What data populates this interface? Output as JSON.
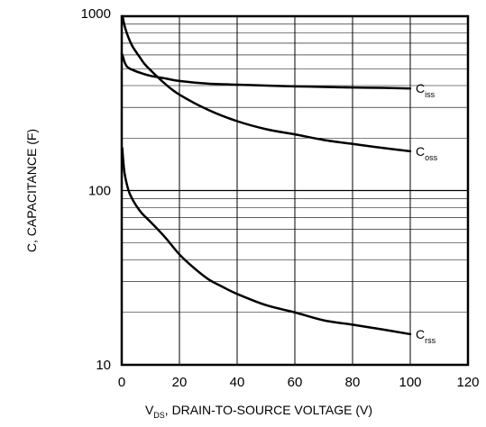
{
  "chart_data": {
    "type": "line",
    "title": "",
    "xlabel": {
      "prefix": "V",
      "sub": "DS",
      "suffix": ", DRAIN-TO-SOURCE VOLTAGE (V)"
    },
    "ylabel": "C, CAPACITANCE (F)",
    "xlim": [
      0,
      120
    ],
    "ylim": [
      10,
      1000
    ],
    "yscale": "log",
    "grid": true,
    "x_ticks": [
      0,
      20,
      40,
      60,
      80,
      100,
      120
    ],
    "x_tick_labels": [
      "0",
      "20",
      "40",
      "60",
      "80",
      "100",
      "120"
    ],
    "y_ticks": [
      10,
      100,
      1000
    ],
    "y_tick_labels": [
      "10",
      "100",
      "1000"
    ],
    "series": [
      {
        "name": "Ciss",
        "label_main": "C",
        "label_sub": "iss",
        "color": "#000000",
        "x": [
          0,
          0.5,
          1,
          2,
          4,
          7,
          10,
          15,
          20,
          30,
          40,
          50,
          60,
          70,
          80,
          90,
          100
        ],
        "y": [
          610,
          580,
          545,
          510,
          490,
          470,
          455,
          440,
          425,
          410,
          405,
          400,
          396,
          393,
          390,
          388,
          385
        ]
      },
      {
        "name": "Coss",
        "label_main": "C",
        "label_sub": "oss",
        "color": "#000000",
        "x": [
          0.3,
          1,
          2,
          3,
          4,
          6,
          8,
          10,
          15,
          20,
          30,
          40,
          50,
          60,
          70,
          80,
          90,
          100
        ],
        "y": [
          1000,
          880,
          780,
          710,
          660,
          590,
          530,
          490,
          410,
          355,
          290,
          250,
          225,
          210,
          195,
          185,
          176,
          168
        ]
      },
      {
        "name": "Crss",
        "label_main": "C",
        "label_sub": "rss",
        "color": "#000000",
        "x": [
          0.2,
          0.5,
          1,
          2,
          3,
          5,
          7,
          10,
          15,
          20,
          25,
          30,
          35,
          40,
          50,
          60,
          70,
          80,
          90,
          100
        ],
        "y": [
          175,
          150,
          125,
          105,
          94,
          82,
          74,
          66,
          54,
          43,
          36,
          31,
          28,
          25.5,
          22,
          20,
          18,
          17,
          16,
          15
        ]
      }
    ]
  }
}
